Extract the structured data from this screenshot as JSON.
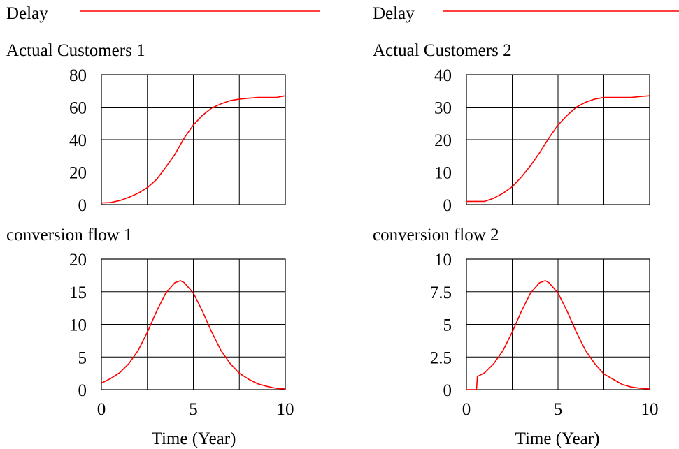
{
  "colors": {
    "series": "#ff0000",
    "axes": "#000000",
    "grid": "#000000",
    "background": "#ffffff"
  },
  "legend_label": "Delay",
  "x_axis_label": "Time (Year)",
  "chart_data": [
    {
      "type": "line",
      "title": "Actual Customers 1",
      "legend": "Delay",
      "xlabel": "Time (Year)",
      "ylabel": "",
      "xlim": [
        0,
        10
      ],
      "ylim": [
        0,
        80
      ],
      "xticks": [],
      "yticks": [
        "0",
        "20",
        "40",
        "60",
        "80"
      ],
      "grid": true,
      "series_name": "Delay",
      "x": [
        0,
        0.5,
        1,
        1.5,
        2,
        2.5,
        3,
        3.5,
        4,
        4.5,
        5,
        5.5,
        6,
        6.5,
        7,
        7.5,
        8,
        8.5,
        9,
        9.5,
        10
      ],
      "y": [
        1,
        1.3,
        2.5,
        4.5,
        7,
        10.5,
        15.5,
        23,
        31,
        41,
        49,
        55,
        59.5,
        62,
        64,
        65,
        65.5,
        66,
        66,
        66,
        67
      ]
    },
    {
      "type": "line",
      "title": "Actual Customers 2",
      "legend": "Delay",
      "xlabel": "Time (Year)",
      "ylabel": "",
      "xlim": [
        0,
        10
      ],
      "ylim": [
        0,
        40
      ],
      "xticks": [],
      "yticks": [
        "0",
        "10",
        "20",
        "30",
        "40"
      ],
      "grid": true,
      "series_name": "Delay",
      "x": [
        0,
        0.5,
        1,
        1.5,
        2,
        2.5,
        3,
        3.5,
        4,
        4.5,
        5,
        5.5,
        6,
        6.5,
        7,
        7.5,
        8,
        8.5,
        9,
        9.5,
        10
      ],
      "y": [
        1,
        1,
        1,
        2,
        3.5,
        5.5,
        8.5,
        12,
        16,
        20.5,
        24.5,
        27.5,
        30,
        31.5,
        32.5,
        33,
        33,
        33,
        33,
        33.3,
        33.5
      ]
    },
    {
      "type": "line",
      "title": "conversion flow 1",
      "legend": "Delay",
      "xlabel": "Time (Year)",
      "ylabel": "",
      "xlim": [
        0,
        10
      ],
      "ylim": [
        0,
        20
      ],
      "xticks": [
        "0",
        "5",
        "10"
      ],
      "yticks": [
        "0",
        "5",
        "10",
        "15",
        "20"
      ],
      "grid": true,
      "series_name": "Delay",
      "x": [
        0,
        0.5,
        1,
        1.5,
        2,
        2.5,
        3,
        3.5,
        4,
        4.3,
        4.5,
        5,
        5.5,
        6,
        6.5,
        7,
        7.5,
        8,
        8.5,
        9,
        9.5,
        10
      ],
      "y": [
        1,
        1.7,
        2.6,
        4,
        6,
        8.8,
        12,
        14.8,
        16.4,
        16.7,
        16.4,
        14.8,
        12,
        8.8,
        6,
        4,
        2.5,
        1.6,
        0.9,
        0.5,
        0.2,
        0.1
      ]
    },
    {
      "type": "line",
      "title": "conversion flow 2",
      "legend": "Delay",
      "xlabel": "Time (Year)",
      "ylabel": "",
      "xlim": [
        0,
        10
      ],
      "ylim": [
        0,
        10
      ],
      "xticks": [
        "0",
        "5",
        "10"
      ],
      "yticks": [
        "0",
        "2.5",
        "5",
        "7.5",
        "10"
      ],
      "grid": true,
      "series_name": "Delay",
      "x": [
        0,
        0.55,
        0.6,
        1,
        1.5,
        2,
        2.5,
        3,
        3.5,
        4,
        4.3,
        4.5,
        5,
        5.5,
        6,
        6.5,
        7,
        7.5,
        8,
        8.5,
        9,
        9.5,
        10
      ],
      "y": [
        0,
        0,
        1,
        1.3,
        2,
        3,
        4.4,
        6,
        7.4,
        8.2,
        8.35,
        8.2,
        7.4,
        6,
        4.4,
        3,
        2,
        1.2,
        0.8,
        0.4,
        0.2,
        0.1,
        0.05
      ]
    }
  ]
}
